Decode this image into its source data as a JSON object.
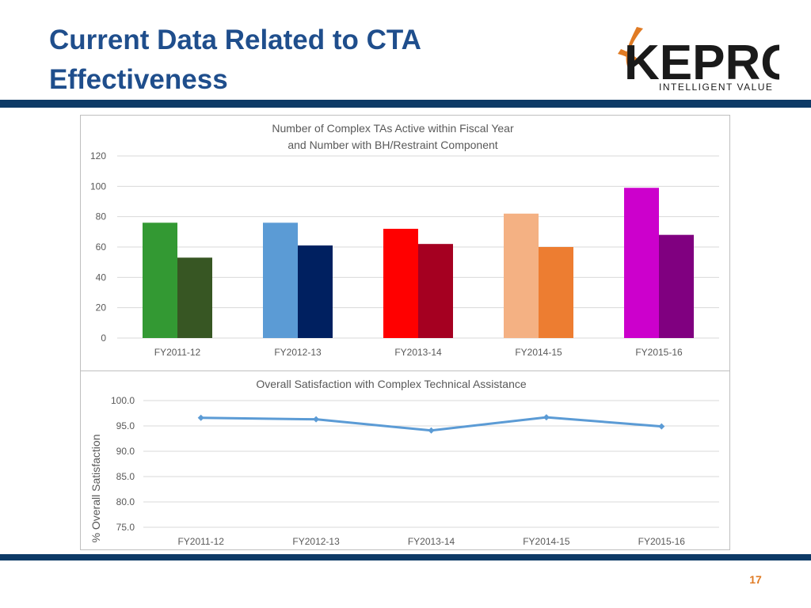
{
  "slide": {
    "title_line1": "Current Data Related to CTA",
    "title_line2": "Effectiveness",
    "page_number": "17"
  },
  "logo": {
    "name": "KEPRO",
    "tagline": "INTELLIGENT VALUE",
    "icon": "kepro-swoosh-icon"
  },
  "colors": {
    "title": "#1f4e8c",
    "band": "#0d3a66",
    "page_number": "#e07b24",
    "line_series": "#5b9bd5"
  },
  "chart_data": [
    {
      "type": "bar",
      "title_line1": "Number of Complex TAs Active within Fiscal Year",
      "title_line2": "and Number with BH/Restraint Component",
      "categories": [
        "FY2011-12",
        "FY2012-13",
        "FY2013-14",
        "FY2014-15",
        "FY2015-16"
      ],
      "series": [
        {
          "name": "Complex TAs Active",
          "values": [
            76,
            76,
            72,
            82,
            99
          ]
        },
        {
          "name": "With BH/Restraint Component",
          "values": [
            53,
            61,
            62,
            60,
            68
          ]
        }
      ],
      "bar_colors": [
        [
          "#339933",
          "#375623"
        ],
        [
          "#5b9bd5",
          "#002060"
        ],
        [
          "#ff0000",
          "#a50021"
        ],
        [
          "#f4b183",
          "#ed7d31"
        ],
        [
          "#cc00cc",
          "#800080"
        ]
      ],
      "ylim": [
        0,
        120
      ],
      "yticks": [
        "0",
        "20",
        "40",
        "60",
        "80",
        "100",
        "120"
      ],
      "xlabel": "",
      "ylabel": "",
      "grid": true
    },
    {
      "type": "line",
      "title": "Overall Satisfaction with Complex Technical Assistance",
      "categories": [
        "FY2011-12",
        "FY2012-13",
        "FY2013-14",
        "FY2014-15",
        "FY2015-16"
      ],
      "series": [
        {
          "name": "% Overall Satisfaction",
          "values": [
            96.6,
            96.3,
            94.1,
            96.7,
            94.9
          ]
        }
      ],
      "ylim": [
        75,
        100
      ],
      "yticks": [
        "75.0",
        "80.0",
        "85.0",
        "90.0",
        "95.0",
        "100.0"
      ],
      "xlabel": "",
      "ylabel": "% Overall Satisfaction",
      "grid": true
    }
  ]
}
